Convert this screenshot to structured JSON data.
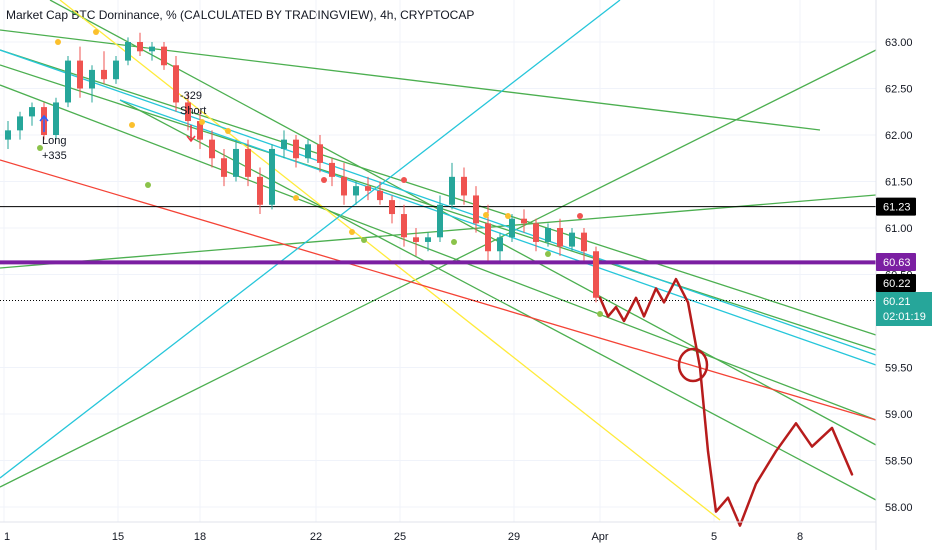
{
  "chart_data": {
    "type": "candlestick",
    "title": "Market Cap BTC Dominance, % (CALCULATED BY TRADINGVIEW), 4h, CRYPTOCAP",
    "y_ticks": [
      "63.00",
      "62.50",
      "62.00",
      "61.50",
      "61.00",
      "60.50",
      "59.50",
      "59.00",
      "58.50",
      "58.00"
    ],
    "y_tick_values": [
      63.0,
      62.5,
      62.0,
      61.5,
      61.0,
      60.5,
      59.5,
      59.0,
      58.5,
      58.0
    ],
    "x_ticks": [
      "1",
      "15",
      "18",
      "22",
      "25",
      "29",
      "Apr",
      "5",
      "8"
    ],
    "y_range": [
      57.9,
      63.3
    ],
    "price_levels": [
      {
        "label": "61.23",
        "value": 61.23,
        "color": "#000000"
      },
      {
        "label": "60.63",
        "value": 60.63,
        "color": "#7b1fa2"
      },
      {
        "label": "60.22",
        "value": 60.22,
        "color": "#000000"
      }
    ],
    "current_price": {
      "label": "60.21",
      "countdown": "02:01:19",
      "color": "#26a69a"
    },
    "annotations": [
      {
        "text": "Long"
      },
      {
        "text": "+335"
      },
      {
        "text": "-329"
      },
      {
        "text": "Short"
      }
    ],
    "candles": [
      [
        61.95,
        62.15,
        61.85,
        62.05
      ],
      [
        62.05,
        62.25,
        61.95,
        62.2
      ],
      [
        62.2,
        62.35,
        62.1,
        62.3
      ],
      [
        62.3,
        62.35,
        61.95,
        62.0
      ],
      [
        62.0,
        62.4,
        61.95,
        62.35
      ],
      [
        62.35,
        62.85,
        62.3,
        62.8
      ],
      [
        62.8,
        62.95,
        62.4,
        62.5
      ],
      [
        62.5,
        62.75,
        62.35,
        62.7
      ],
      [
        62.7,
        62.9,
        62.55,
        62.6
      ],
      [
        62.6,
        62.85,
        62.55,
        62.8
      ],
      [
        62.8,
        63.05,
        62.75,
        63.0
      ],
      [
        63.0,
        63.1,
        62.85,
        62.9
      ],
      [
        62.9,
        63.0,
        62.8,
        62.95
      ],
      [
        62.95,
        63.0,
        62.7,
        62.75
      ],
      [
        62.75,
        62.85,
        62.25,
        62.35
      ],
      [
        62.35,
        62.45,
        62.05,
        62.15
      ],
      [
        62.15,
        62.25,
        61.85,
        61.95
      ],
      [
        61.95,
        62.05,
        61.65,
        61.75
      ],
      [
        61.75,
        61.85,
        61.45,
        61.55
      ],
      [
        61.55,
        61.95,
        61.5,
        61.85
      ],
      [
        61.85,
        61.95,
        61.45,
        61.55
      ],
      [
        61.55,
        61.65,
        61.15,
        61.25
      ],
      [
        61.25,
        61.9,
        61.2,
        61.85
      ],
      [
        61.85,
        62.05,
        61.75,
        61.95
      ],
      [
        61.95,
        62.0,
        61.65,
        61.75
      ],
      [
        61.75,
        61.95,
        61.7,
        61.9
      ],
      [
        61.9,
        62.0,
        61.6,
        61.7
      ],
      [
        61.7,
        61.75,
        61.45,
        61.55
      ],
      [
        61.55,
        61.7,
        61.25,
        61.35
      ],
      [
        61.35,
        61.5,
        61.25,
        61.45
      ],
      [
        61.45,
        61.55,
        61.3,
        61.4
      ],
      [
        61.4,
        61.5,
        61.25,
        61.3
      ],
      [
        61.3,
        61.35,
        61.05,
        61.15
      ],
      [
        61.15,
        61.25,
        60.8,
        60.9
      ],
      [
        60.9,
        61.0,
        60.7,
        60.85
      ],
      [
        60.85,
        60.95,
        60.75,
        60.9
      ],
      [
        60.9,
        61.35,
        60.85,
        61.25
      ],
      [
        61.25,
        61.7,
        61.2,
        61.55
      ],
      [
        61.55,
        61.65,
        61.25,
        61.35
      ],
      [
        61.35,
        61.45,
        60.95,
        61.05
      ],
      [
        61.05,
        61.25,
        60.65,
        60.75
      ],
      [
        60.75,
        60.95,
        60.65,
        60.9
      ],
      [
        60.9,
        61.15,
        60.85,
        61.1
      ],
      [
        61.1,
        61.2,
        60.95,
        61.05
      ],
      [
        61.05,
        61.1,
        60.75,
        60.85
      ],
      [
        60.85,
        61.05,
        60.8,
        61.0
      ],
      [
        61.0,
        61.1,
        60.7,
        60.8
      ],
      [
        60.8,
        61.0,
        60.75,
        60.95
      ],
      [
        60.95,
        61.0,
        60.65,
        60.75
      ],
      [
        60.75,
        60.8,
        60.2,
        60.25
      ]
    ],
    "hand_drawn_projection": [
      [
        60.25,
        0.0
      ],
      [
        60.05,
        0.02
      ],
      [
        60.15,
        0.04
      ],
      [
        60.0,
        0.06
      ],
      [
        60.25,
        0.09
      ],
      [
        60.05,
        0.11
      ],
      [
        60.35,
        0.14
      ],
      [
        60.2,
        0.16
      ],
      [
        60.45,
        0.19
      ],
      [
        60.2,
        0.22
      ],
      [
        59.5,
        0.25
      ],
      [
        58.6,
        0.27
      ],
      [
        57.95,
        0.29
      ],
      [
        58.1,
        0.32
      ],
      [
        57.8,
        0.35
      ],
      [
        58.25,
        0.39
      ],
      [
        58.6,
        0.44
      ],
      [
        58.9,
        0.49
      ],
      [
        58.65,
        0.53
      ],
      [
        58.85,
        0.58
      ],
      [
        58.35,
        0.63
      ]
    ]
  }
}
